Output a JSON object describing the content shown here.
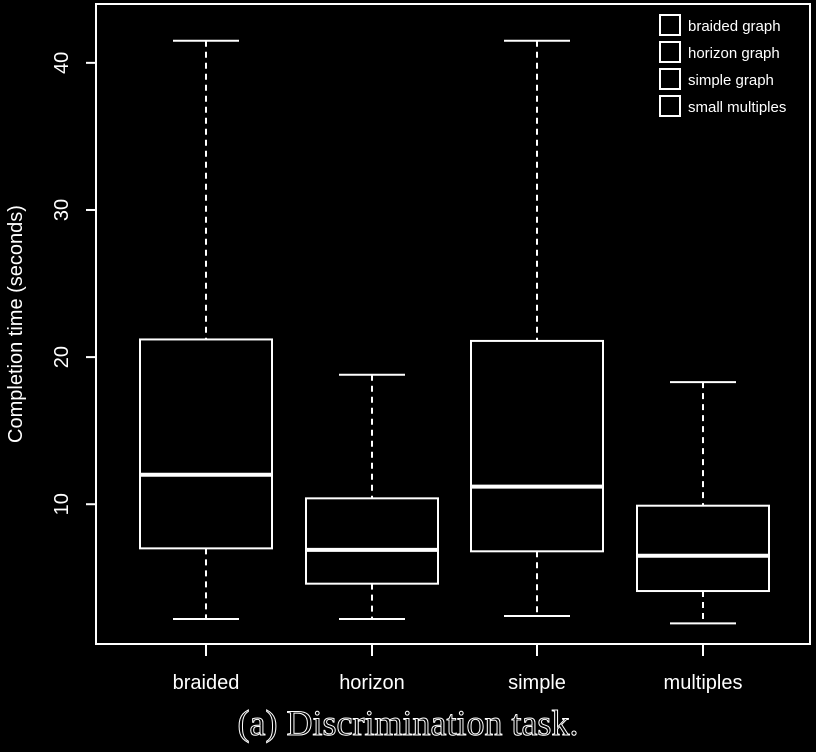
{
  "caption": "(a) Discrimination task.",
  "chart_data": {
    "type": "boxplot",
    "title": "",
    "xlabel": "",
    "ylabel": "Completion time (seconds)",
    "ylim": [
      0.5,
      44
    ],
    "yticks": [
      10,
      20,
      30,
      40
    ],
    "grid": false,
    "legend_position": "top-right",
    "legend": [
      "braided graph",
      "horizon graph",
      "simple graph",
      "small multiples"
    ],
    "categories": [
      "braided",
      "horizon",
      "simple",
      "multiples"
    ],
    "boxes": [
      {
        "category": "braided",
        "whisker_low": 2.2,
        "q1": 7.0,
        "median": 12.0,
        "q3": 21.2,
        "whisker_high": 41.5
      },
      {
        "category": "horizon",
        "whisker_low": 2.2,
        "q1": 4.6,
        "median": 6.9,
        "q3": 10.4,
        "whisker_high": 18.8
      },
      {
        "category": "simple",
        "whisker_low": 2.4,
        "q1": 6.8,
        "median": 11.2,
        "q3": 21.1,
        "whisker_high": 41.5
      },
      {
        "category": "multiples",
        "whisker_low": 1.9,
        "q1": 4.1,
        "median": 6.5,
        "q3": 9.9,
        "whisker_high": 18.3
      }
    ]
  }
}
